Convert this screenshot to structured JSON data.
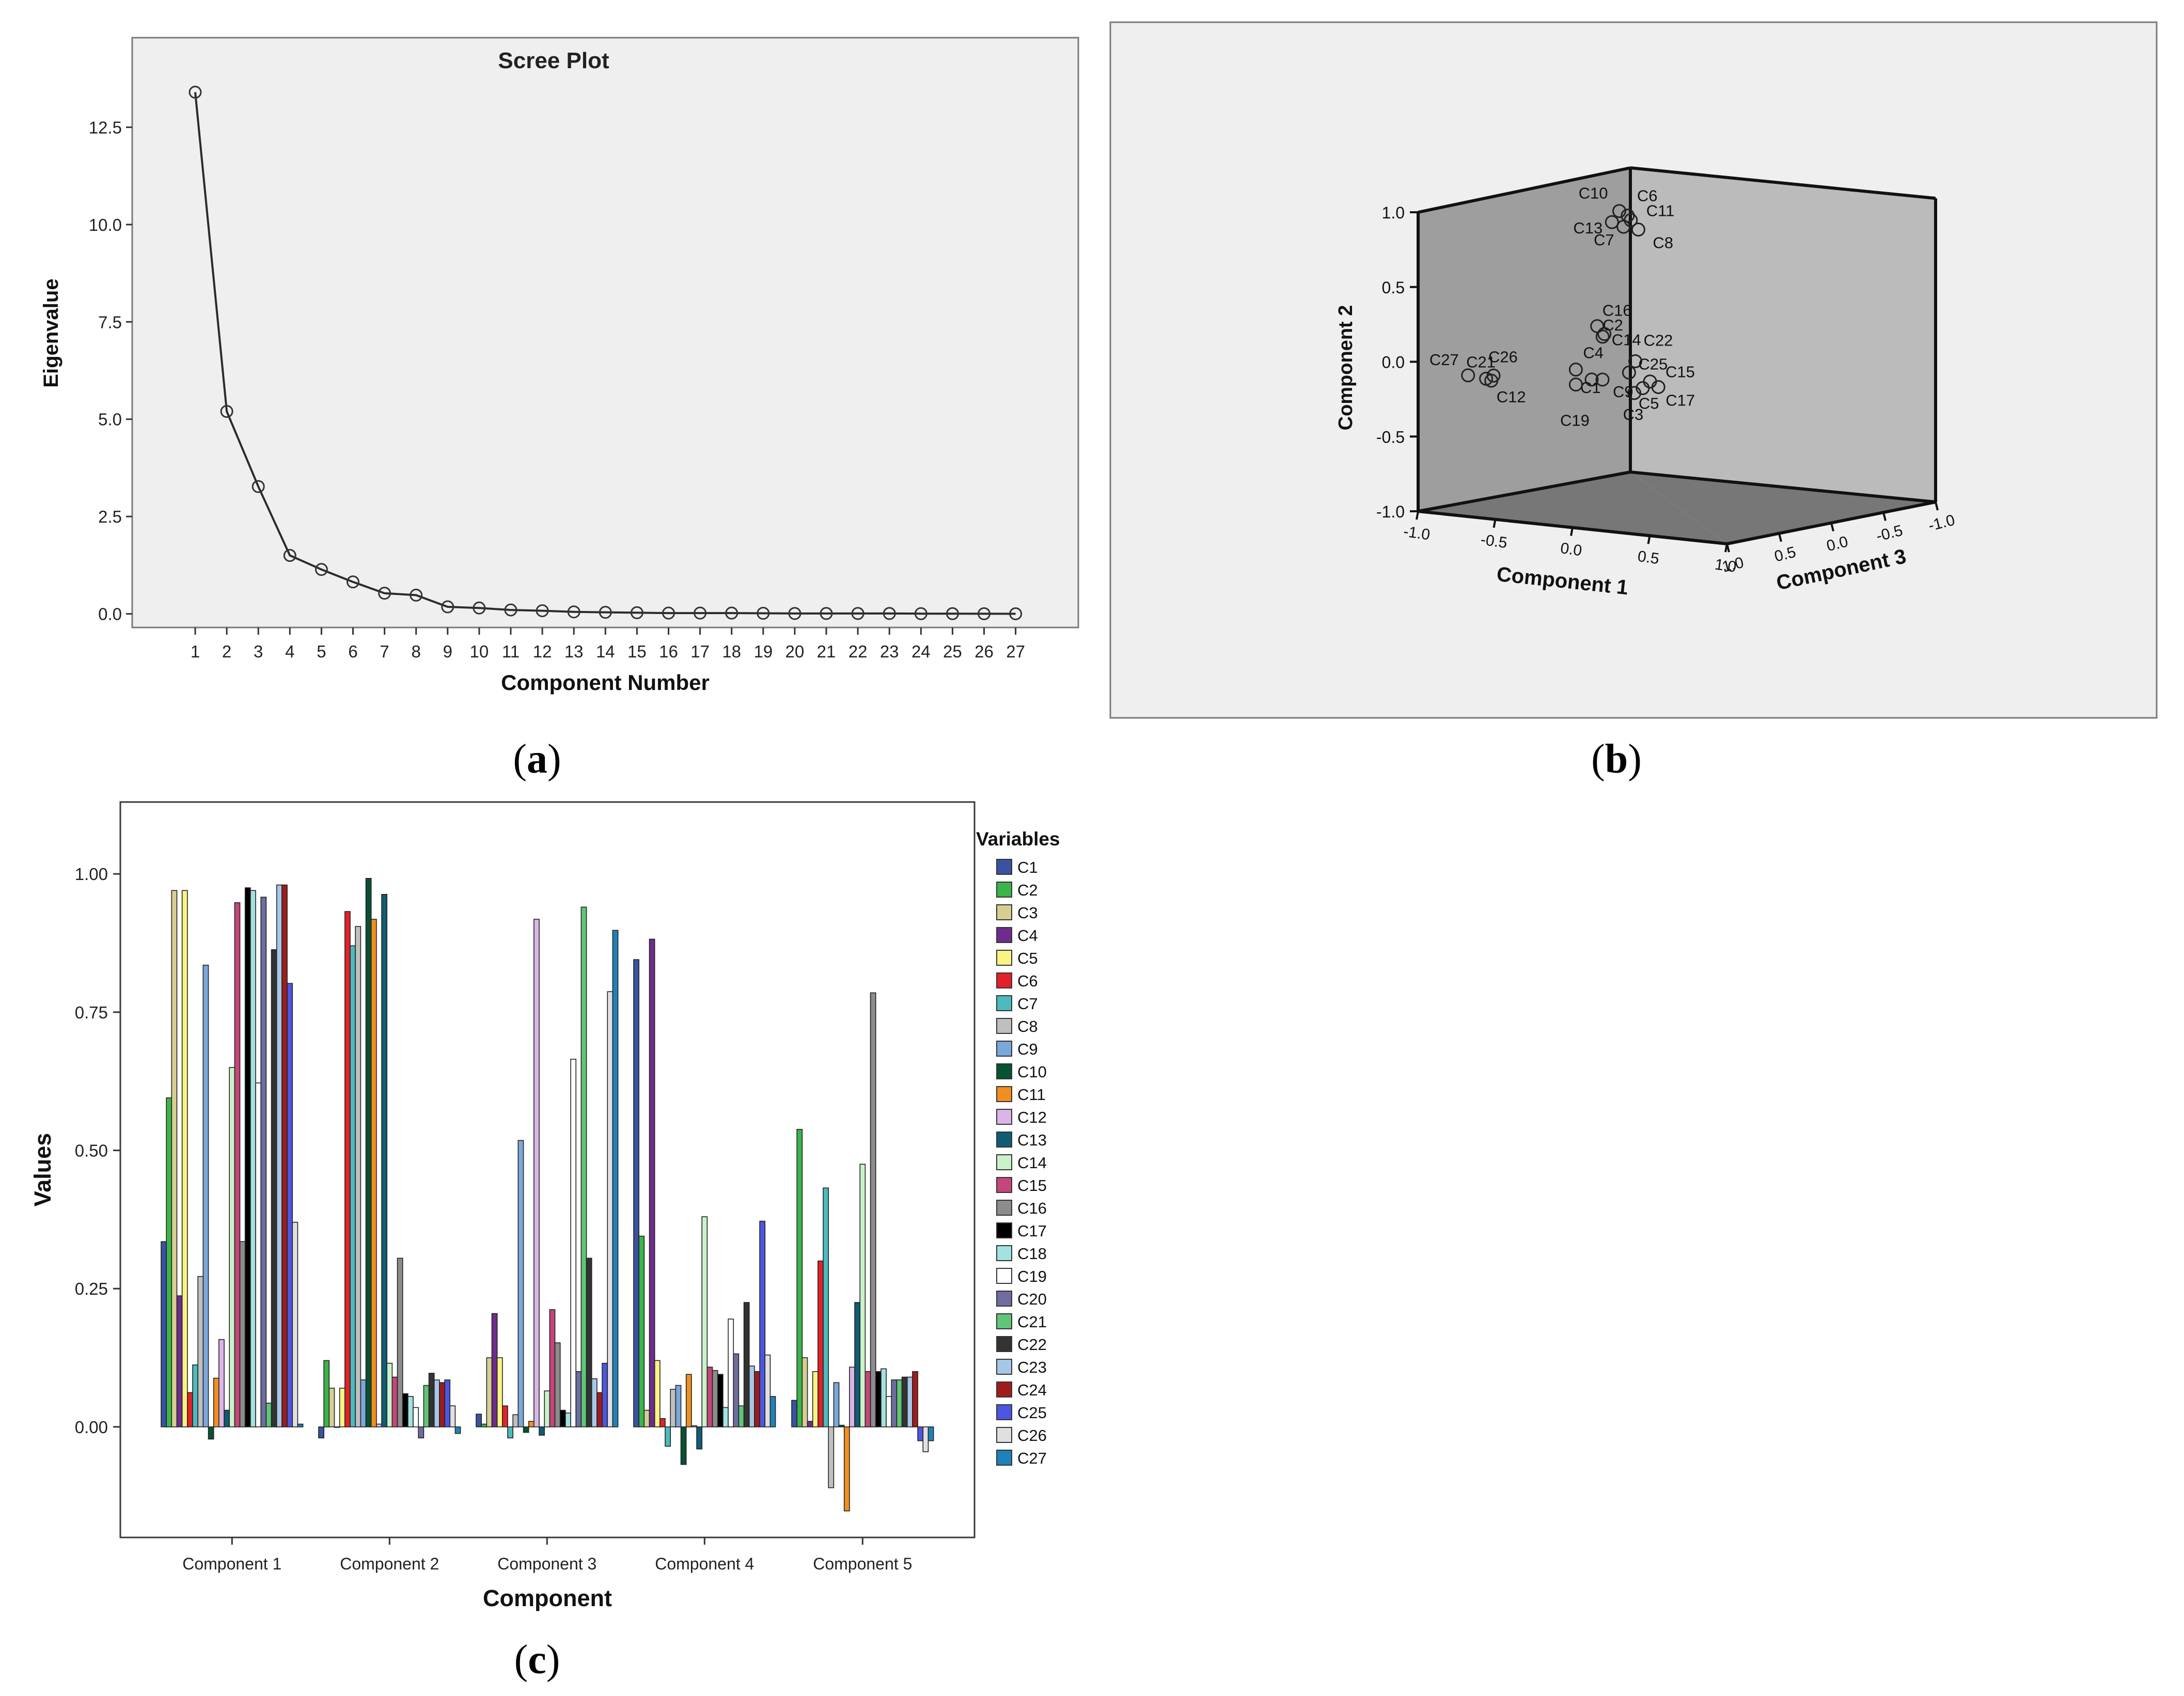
{
  "panel_labels": {
    "a": {
      "open": "(",
      "letter": "a",
      "close": ")"
    },
    "b": {
      "open": "(",
      "letter": "b",
      "close": ")"
    },
    "c": {
      "open": "(",
      "letter": "c",
      "close": ")"
    }
  },
  "colors": {
    "plot_bg": "#efefef",
    "frame": "#7a7a7a",
    "line": "#2b2b2b",
    "cube_left": "#9e9e9e",
    "cube_back": "#bbbbbb",
    "cube_floor": "#777777"
  },
  "chart_data": [
    {
      "id": "scree",
      "type": "line",
      "title": "Scree Plot",
      "xlabel": "Component Number",
      "ylabel": "Eigenvalue",
      "x": [
        1,
        2,
        3,
        4,
        5,
        6,
        7,
        8,
        9,
        10,
        11,
        12,
        13,
        14,
        15,
        16,
        17,
        18,
        19,
        20,
        21,
        22,
        23,
        24,
        25,
        26,
        27
      ],
      "x_tick_labels": [
        "1",
        "2",
        "3",
        "4",
        "5",
        "6",
        "7",
        "8",
        "9",
        "10",
        "11",
        "12",
        "13",
        "14",
        "15",
        "16",
        "17",
        "18",
        "19",
        "20",
        "21",
        "22",
        "23",
        "24",
        "25",
        "26",
        "27"
      ],
      "y": [
        13.4,
        5.2,
        3.27,
        1.5,
        1.14,
        0.82,
        0.53,
        0.48,
        0.18,
        0.15,
        0.1,
        0.08,
        0.05,
        0.04,
        0.03,
        0.02,
        0.02,
        0.02,
        0.015,
        0.01,
        0.01,
        0.01,
        0.01,
        0.005,
        0.005,
        0.003,
        0.002
      ],
      "y_ticks": [
        0,
        2.5,
        5,
        7.5,
        10,
        12.5
      ],
      "y_tick_labels": [
        "0.0",
        "2.5",
        "5.0",
        "7.5",
        "10.0",
        "12.5"
      ],
      "ylim": [
        -0.35,
        14.8
      ],
      "marker": "open-circle"
    },
    {
      "id": "component-plot",
      "type": "scatter",
      "projection": "3d",
      "xlabel": "Component 1",
      "ylabel": "Component 2",
      "zlabel": "Component 3",
      "axis_range": [
        -1,
        1
      ],
      "x_tick_labels": [
        "-1.0",
        "-0.5",
        "0.0",
        "0.5",
        "1.0"
      ],
      "y_tick_labels": [
        "-1.0",
        "-0.5",
        "0.0",
        "0.5",
        "1.0"
      ],
      "z_tick_labels": [
        "1.0",
        "0.5",
        "0.0",
        "-0.5",
        "-1.0"
      ],
      "points": [
        {
          "label": "C10",
          "x": 0.22,
          "y": 1.0,
          "z": -0.25
        },
        {
          "label": "C6",
          "x": 0.3,
          "y": 0.98,
          "z": -0.25
        },
        {
          "label": "C11",
          "x": 0.28,
          "y": 0.94,
          "z": -0.3
        },
        {
          "label": "C13",
          "x": 0.2,
          "y": 0.93,
          "z": -0.2
        },
        {
          "label": "C7",
          "x": 0.26,
          "y": 0.9,
          "z": -0.25
        },
        {
          "label": "C8",
          "x": 0.4,
          "y": 0.9,
          "z": -0.25
        },
        {
          "label": "C16",
          "x": 0.55,
          "y": 0.35,
          "z": 0.3
        },
        {
          "label": "C2",
          "x": 0.65,
          "y": 0.3,
          "z": 0.35
        },
        {
          "label": "C14",
          "x": 0.52,
          "y": 0.28,
          "z": 0.2
        },
        {
          "label": "C22",
          "x": 0.86,
          "y": 0.15,
          "z": 0.25
        },
        {
          "label": "C25",
          "x": 0.85,
          "y": 0.08,
          "z": 0.3
        },
        {
          "label": "C15",
          "x": 0.95,
          "y": 0.02,
          "z": 0.2
        },
        {
          "label": "C17",
          "x": 0.98,
          "y": -0.02,
          "z": 0.15
        },
        {
          "label": "C5",
          "x": 0.93,
          "y": -0.02,
          "z": 0.25
        },
        {
          "label": "C3",
          "x": 0.9,
          "y": -0.05,
          "z": 0.3
        },
        {
          "label": "C4",
          "x": 0.3,
          "y": 0.02,
          "z": 0.25
        },
        {
          "label": "C1",
          "x": 0.4,
          "y": -0.04,
          "z": 0.2
        },
        {
          "label": "C9",
          "x": 0.6,
          "y": 0.0,
          "z": 0.3
        },
        {
          "label": "C19",
          "x": 0.3,
          "y": -0.08,
          "z": 0.25
        },
        {
          "label": "C26",
          "x": -0.28,
          "y": -0.07,
          "z": 0.45
        },
        {
          "label": "C21",
          "x": -0.35,
          "y": -0.1,
          "z": 0.45
        },
        {
          "label": "C12",
          "x": -0.35,
          "y": -0.12,
          "z": 0.4
        },
        {
          "label": "C27",
          "x": -0.52,
          "y": -0.1,
          "z": 0.45
        }
      ]
    },
    {
      "id": "component-loadings",
      "type": "bar",
      "xlabel": "Component",
      "ylabel": "Values",
      "legend_title": "Variables",
      "legend_position": "right",
      "categories": [
        "Component 1",
        "Component 2",
        "Component 3",
        "Component 4",
        "Component 5"
      ],
      "y_ticks": [
        0,
        0.25,
        0.5,
        0.75,
        1.0
      ],
      "y_tick_labels": [
        "0.00",
        "0.25",
        "0.50",
        "0.75",
        "1.00"
      ],
      "ylim": [
        -0.2,
        1.13
      ],
      "series": [
        {
          "name": "C1",
          "color": "#3952a3",
          "values": [
            0.335,
            -0.02,
            0.023,
            0.845,
            0.048
          ]
        },
        {
          "name": "C2",
          "color": "#3bb44a",
          "values": [
            0.595,
            0.12,
            0.005,
            0.345,
            0.538
          ]
        },
        {
          "name": "C3",
          "color": "#d6cf92",
          "values": [
            0.97,
            0.07,
            0.125,
            0.03,
            0.125
          ]
        },
        {
          "name": "C4",
          "color": "#6f2c8e",
          "values": [
            0.237,
            0.0,
            0.205,
            0.882,
            0.01
          ]
        },
        {
          "name": "C5",
          "color": "#fbf482",
          "values": [
            0.97,
            0.07,
            0.125,
            0.12,
            0.1
          ]
        },
        {
          "name": "C6",
          "color": "#e32129",
          "values": [
            0.062,
            0.932,
            0.038,
            0.015,
            0.3
          ]
        },
        {
          "name": "C7",
          "color": "#4bbbbf",
          "values": [
            0.112,
            0.87,
            -0.02,
            -0.035,
            0.432
          ]
        },
        {
          "name": "C8",
          "color": "#bfbfbf",
          "values": [
            0.272,
            0.905,
            0.022,
            0.068,
            -0.11
          ]
        },
        {
          "name": "C9",
          "color": "#7ba8db",
          "values": [
            0.835,
            0.085,
            0.518,
            0.075,
            0.08
          ]
        },
        {
          "name": "C10",
          "color": "#075233",
          "values": [
            -0.022,
            0.992,
            -0.01,
            -0.068,
            0.003
          ]
        },
        {
          "name": "C11",
          "color": "#f28e1f",
          "values": [
            0.088,
            0.918,
            0.01,
            0.095,
            -0.152
          ]
        },
        {
          "name": "C12",
          "color": "#dbb5e8",
          "values": [
            0.158,
            0.005,
            0.918,
            0.002,
            0.108
          ]
        },
        {
          "name": "C13",
          "color": "#0f5c73",
          "values": [
            0.03,
            0.963,
            -0.015,
            -0.04,
            0.225
          ]
        },
        {
          "name": "C14",
          "color": "#c9f2c9",
          "values": [
            0.65,
            0.115,
            0.065,
            0.38,
            0.475
          ]
        },
        {
          "name": "C15",
          "color": "#c6457a",
          "values": [
            0.948,
            0.09,
            0.212,
            0.108,
            0.1
          ]
        },
        {
          "name": "C16",
          "color": "#8c8c8c",
          "values": [
            0.335,
            0.305,
            0.152,
            0.102,
            0.785
          ]
        },
        {
          "name": "C17",
          "color": "#000000",
          "values": [
            0.975,
            0.06,
            0.03,
            0.095,
            0.1
          ]
        },
        {
          "name": "C18",
          "color": "#a3e2e2",
          "values": [
            0.97,
            0.055,
            0.025,
            0.035,
            0.105
          ]
        },
        {
          "name": "C19",
          "color": "#ffffff",
          "values": [
            0.622,
            0.035,
            0.665,
            0.195,
            0.055
          ]
        },
        {
          "name": "C20",
          "color": "#6f6c9f",
          "values": [
            0.958,
            -0.02,
            0.1,
            0.132,
            0.085
          ]
        },
        {
          "name": "C21",
          "color": "#5fc678",
          "values": [
            0.043,
            0.075,
            0.94,
            0.038,
            0.085
          ]
        },
        {
          "name": "C22",
          "color": "#333333",
          "values": [
            0.863,
            0.097,
            0.305,
            0.225,
            0.09
          ]
        },
        {
          "name": "C23",
          "color": "#a6c8e8",
          "values": [
            0.98,
            0.085,
            0.087,
            0.11,
            0.09
          ]
        },
        {
          "name": "C24",
          "color": "#a01c1c",
          "values": [
            0.98,
            0.08,
            0.062,
            0.1,
            0.1
          ]
        },
        {
          "name": "C25",
          "color": "#4d56e0",
          "values": [
            0.802,
            0.085,
            0.115,
            0.372,
            -0.025
          ]
        },
        {
          "name": "C26",
          "color": "#e0e0e0",
          "values": [
            0.37,
            0.038,
            0.787,
            0.13,
            -0.045
          ]
        },
        {
          "name": "C27",
          "color": "#1d82b8",
          "values": [
            0.005,
            -0.012,
            0.898,
            0.055,
            -0.025
          ]
        }
      ]
    }
  ]
}
